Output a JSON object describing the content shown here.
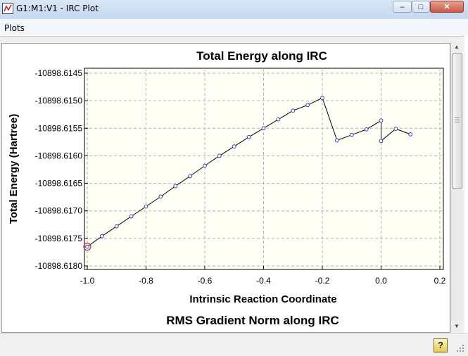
{
  "window": {
    "title": "G1:M1:V1 - IRC Plot",
    "minimize_glyph": "–",
    "maximize_glyph": "□",
    "close_glyph": "✕"
  },
  "menu": {
    "items": [
      "Plots"
    ]
  },
  "chart_data": [
    {
      "type": "line",
      "title": "Total Energy along IRC",
      "xlabel": "Intrinsic Reaction Coordinate",
      "ylabel": "Total Energy (Hartree)",
      "xlim": [
        -1.0,
        0.2
      ],
      "ylim": [
        -10898.618,
        -10898.6145
      ],
      "xticks": [
        -1.0,
        -0.8,
        -0.6,
        -0.4,
        -0.2,
        0.0,
        0.2
      ],
      "xtick_labels": [
        "-1.0",
        "-0.8",
        "-0.6",
        "-0.4",
        "-0.2",
        "0.0",
        "0.2"
      ],
      "yticks": [
        -10898.6145,
        -10898.615,
        -10898.6155,
        -10898.616,
        -10898.6165,
        -10898.617,
        -10898.6175,
        -10898.618
      ],
      "ytick_labels": [
        "-10898.6145",
        "-10898.6150",
        "-10898.6155",
        "-10898.6160",
        "-10898.6165",
        "-10898.6170",
        "-10898.6175",
        "-10898.6180"
      ],
      "grid": true,
      "plot_background": "#fffff5",
      "line_color": "#000000",
      "marker_color": "#3c3cb4",
      "highlight_color": "#c8325a",
      "highlight_index": 0,
      "series": [
        {
          "x": [
            -1.0,
            -0.95,
            -0.9,
            -0.85,
            -0.8,
            -0.75,
            -0.7,
            -0.65,
            -0.6,
            -0.55,
            -0.5,
            -0.45,
            -0.4,
            -0.35,
            -0.3,
            -0.25,
            -0.2,
            -0.15,
            -0.1,
            -0.05,
            0.0,
            0.0,
            0.05,
            0.1
          ],
          "y": [
            -10898.61765,
            -10898.61746,
            -10898.61728,
            -10898.6171,
            -10898.61692,
            -10898.61674,
            -10898.61655,
            -10898.61637,
            -10898.61618,
            -10898.616,
            -10898.61583,
            -10898.61566,
            -10898.6155,
            -10898.61534,
            -10898.61518,
            -10898.61508,
            -10898.61495,
            -10898.61572,
            -10898.61562,
            -10898.61552,
            -10898.61536,
            -10898.61573,
            -10898.61551,
            -10898.61561
          ]
        }
      ]
    },
    {
      "type": "line",
      "title": "RMS Gradient Norm along IRC"
    }
  ],
  "status": {
    "help_glyph": "?"
  }
}
